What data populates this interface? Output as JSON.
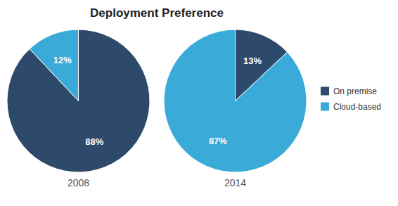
{
  "chart_data": [
    {
      "type": "pie",
      "title": "Deployment Preference",
      "subtitle": "2008",
      "categories": [
        "On premise",
        "Cloud-based"
      ],
      "values": [
        88,
        12
      ],
      "value_labels": [
        "88%",
        "12%"
      ],
      "colors": [
        "#2e4a6b",
        "#3aaad8"
      ],
      "data_labels": true,
      "legend": "right"
    },
    {
      "type": "pie",
      "subtitle": "2014",
      "values": [
        13,
        87
      ],
      "value_labels": [
        "13%",
        "87%"
      ],
      "colors": [
        "#2e4a6b",
        "#3aaad8"
      ],
      "data_labels": true
    }
  ]
}
